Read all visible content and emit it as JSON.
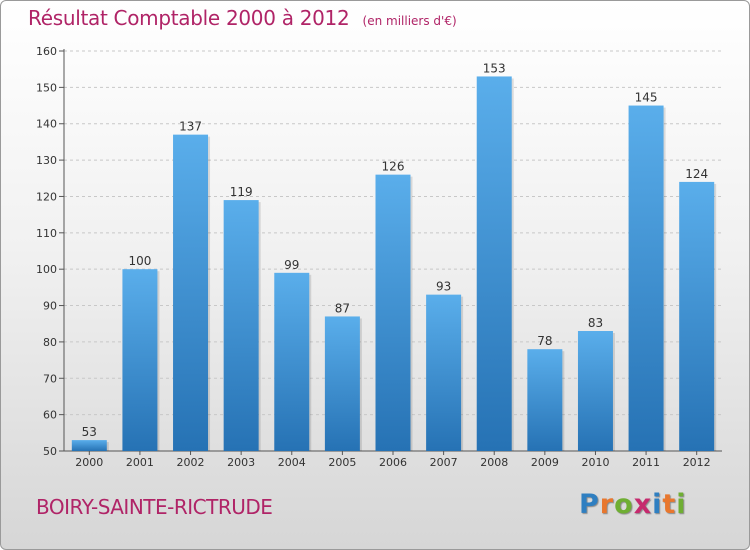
{
  "title": "Résultat Comptable 2000 à 2012",
  "subtitle": "(en milliers d'€)",
  "commune": "BOIRY-SAINTE-RICTRUDE",
  "logo": {
    "letters": [
      "P",
      "r",
      "o",
      "x",
      "i",
      "t",
      "i"
    ],
    "colors": [
      "#2f7fc1",
      "#e8772e",
      "#6fae33",
      "#c62a6e",
      "#2f7fc1",
      "#e8772e",
      "#6fae33"
    ]
  },
  "colors": {
    "title": "#b02467",
    "bar_light": "#5aaeeb",
    "bar_dark": "#2672b4"
  },
  "chart_data": {
    "type": "bar",
    "categories": [
      "2000",
      "2001",
      "2002",
      "2003",
      "2004",
      "2005",
      "2006",
      "2007",
      "2008",
      "2009",
      "2010",
      "2011",
      "2012"
    ],
    "values": [
      53,
      100,
      137,
      119,
      99,
      87,
      126,
      93,
      153,
      78,
      83,
      145,
      124
    ],
    "ylim": [
      50,
      160
    ],
    "yticks": [
      50,
      60,
      70,
      80,
      90,
      100,
      110,
      120,
      130,
      140,
      150,
      160
    ],
    "grid": true,
    "xlabel": "",
    "ylabel": ""
  }
}
